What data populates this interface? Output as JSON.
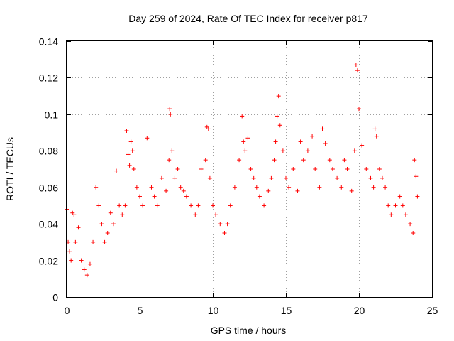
{
  "chart_data": {
    "type": "scatter",
    "title": "Day 259 of 2024, Rate Of TEC Index for receiver p817",
    "xlabel": "GPS time / hours",
    "ylabel": "ROTI / TECUs",
    "xlim": [
      0,
      25
    ],
    "ylim": [
      0,
      0.14
    ],
    "x_ticks": [
      0,
      5,
      10,
      15,
      20,
      25
    ],
    "y_ticks": [
      0,
      0.02,
      0.04,
      0.06,
      0.08,
      0.1,
      0.12,
      0.14
    ],
    "x_tick_labels": [
      "0",
      "5",
      "10",
      "15",
      "20",
      "25"
    ],
    "y_tick_labels": [
      "0",
      "0.02",
      "0.04",
      "0.06",
      "0.08",
      "0.1",
      "0.12",
      "0.14"
    ],
    "grid": true,
    "marker": "+",
    "color": "#ff0000",
    "series": [
      {
        "x": [
          0.0,
          0.1,
          0.2,
          0.3,
          0.4,
          0.5,
          0.6,
          0.8,
          1.0,
          1.2,
          1.4,
          1.6,
          1.8,
          2.0,
          2.2,
          2.4,
          2.6,
          2.8,
          3.0,
          3.2,
          3.4,
          3.6,
          3.8,
          4.0,
          4.1,
          4.2,
          4.3,
          4.4,
          4.5,
          4.6,
          4.8,
          5.0,
          5.2,
          5.5,
          5.8,
          6.0,
          6.2,
          6.5,
          6.8,
          7.0,
          7.05,
          7.1,
          7.2,
          7.4,
          7.6,
          7.8,
          8.0,
          8.2,
          8.5,
          8.8,
          9.0,
          9.2,
          9.5,
          9.6,
          9.7,
          9.8,
          10.0,
          10.2,
          10.5,
          10.8,
          11.0,
          11.2,
          11.5,
          11.8,
          12.0,
          12.1,
          12.2,
          12.4,
          12.6,
          12.8,
          13.0,
          13.2,
          13.5,
          13.8,
          14.0,
          14.2,
          14.3,
          14.4,
          14.5,
          14.6,
          14.8,
          15.0,
          15.2,
          15.5,
          15.8,
          16.0,
          16.2,
          16.5,
          16.8,
          17.0,
          17.3,
          17.5,
          17.7,
          18.0,
          18.2,
          18.5,
          18.8,
          19.0,
          19.2,
          19.5,
          19.7,
          19.8,
          19.9,
          20.0,
          20.2,
          20.5,
          20.8,
          21.0,
          21.1,
          21.2,
          21.4,
          21.6,
          21.8,
          22.0,
          22.2,
          22.5,
          22.8,
          23.0,
          23.2,
          23.5,
          23.7,
          23.8,
          23.9,
          24.0
        ],
        "y": [
          0.048,
          0.03,
          0.025,
          0.02,
          0.046,
          0.045,
          0.03,
          0.038,
          0.02,
          0.015,
          0.012,
          0.018,
          0.03,
          0.06,
          0.05,
          0.04,
          0.03,
          0.035,
          0.046,
          0.04,
          0.069,
          0.05,
          0.045,
          0.05,
          0.091,
          0.078,
          0.072,
          0.085,
          0.08,
          0.07,
          0.06,
          0.055,
          0.05,
          0.087,
          0.06,
          0.055,
          0.05,
          0.065,
          0.058,
          0.075,
          0.103,
          0.1,
          0.08,
          0.065,
          0.07,
          0.06,
          0.058,
          0.055,
          0.05,
          0.045,
          0.05,
          0.07,
          0.075,
          0.093,
          0.092,
          0.065,
          0.05,
          0.045,
          0.04,
          0.035,
          0.04,
          0.05,
          0.06,
          0.075,
          0.099,
          0.085,
          0.08,
          0.087,
          0.07,
          0.065,
          0.06,
          0.055,
          0.05,
          0.058,
          0.065,
          0.075,
          0.085,
          0.099,
          0.11,
          0.094,
          0.08,
          0.065,
          0.06,
          0.07,
          0.058,
          0.085,
          0.075,
          0.08,
          0.088,
          0.07,
          0.06,
          0.092,
          0.084,
          0.075,
          0.07,
          0.065,
          0.06,
          0.075,
          0.07,
          0.058,
          0.08,
          0.127,
          0.124,
          0.103,
          0.083,
          0.07,
          0.065,
          0.06,
          0.092,
          0.088,
          0.07,
          0.065,
          0.06,
          0.05,
          0.045,
          0.05,
          0.055,
          0.05,
          0.045,
          0.04,
          0.035,
          0.075,
          0.066,
          0.055
        ]
      }
    ]
  }
}
